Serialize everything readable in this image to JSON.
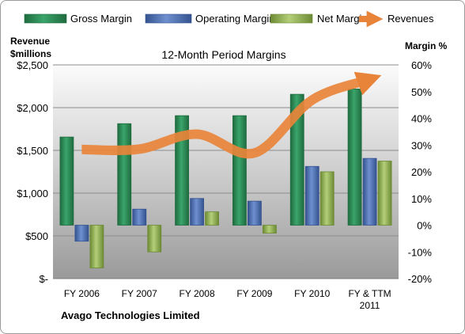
{
  "chart_data": {
    "type": "bar+line",
    "title": "12-Month Period Margins",
    "company": "Avago Technologies Limited",
    "categories": [
      "FY 2006",
      "FY 2007",
      "FY 2008",
      "FY 2009",
      "FY 2010",
      "FY & TTM 2011"
    ],
    "left_axis": {
      "label_line1": "Revenue",
      "label_line2": "$millions",
      "ticks": [
        "$-",
        "$500",
        "$1,000",
        "$1,500",
        "$2,000",
        "$2,500"
      ],
      "tick_values": [
        0,
        500,
        1000,
        1500,
        2000,
        2500
      ],
      "ylim": [
        0,
        2500
      ]
    },
    "right_axis": {
      "label": "Margin %",
      "ticks": [
        "-20%",
        "-10%",
        "0%",
        "10%",
        "20%",
        "30%",
        "40%",
        "50%",
        "60%"
      ],
      "tick_values": [
        -20,
        -10,
        0,
        10,
        20,
        30,
        40,
        50,
        60
      ],
      "ylim": [
        -20,
        60
      ]
    },
    "series": [
      {
        "name": "Gross Margin",
        "axis": "right",
        "type": "bar",
        "color": "#2e8b57",
        "values": [
          33,
          38,
          41,
          41,
          49,
          51
        ]
      },
      {
        "name": "Operating Margin",
        "axis": "right",
        "type": "bar",
        "color": "#4f72b8",
        "values": [
          -6,
          6,
          10,
          9,
          22,
          25
        ]
      },
      {
        "name": "Net Margin",
        "axis": "right",
        "type": "bar",
        "color": "#92b050",
        "values": [
          -16,
          -10,
          5,
          -3,
          20,
          24
        ]
      },
      {
        "name": "Revenues",
        "axis": "left",
        "type": "line",
        "color": "#e8843a",
        "values": [
          1510,
          1515,
          1690,
          1470,
          2090,
          2330
        ]
      }
    ],
    "grid": true,
    "legend": "top"
  }
}
